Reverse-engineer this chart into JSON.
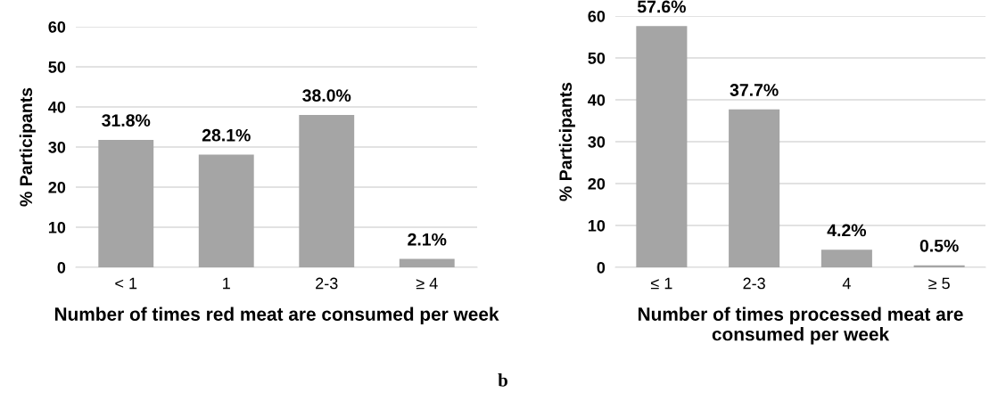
{
  "chart_data": [
    {
      "type": "bar",
      "xlabel": "Number of times red meat are consumed per week",
      "ylabel": "% Participants",
      "categories": [
        "< 1",
        "1",
        "2-3",
        "≥ 4"
      ],
      "values": [
        31.8,
        28.1,
        38.0,
        2.1
      ],
      "value_labels": [
        "31.8%",
        "28.1%",
        "38.0%",
        "2.1%"
      ],
      "color": "#a5a5a5",
      "ylim": [
        0,
        60
      ],
      "yticks": [
        0,
        10,
        20,
        30,
        40,
        50,
        60
      ],
      "grid": "y",
      "annotations": [
        "b"
      ]
    },
    {
      "type": "bar",
      "xlabel": "Number of times processed meat are consumed per week",
      "ylabel": "% Participants",
      "categories": [
        "≤ 1",
        "2-3",
        "4",
        "≥ 5"
      ],
      "values": [
        57.6,
        37.7,
        4.2,
        0.5
      ],
      "value_labels": [
        "57.6%",
        "37.7%",
        "4.2%",
        "0.5%"
      ],
      "color": "#a5a5a5",
      "ylim": [
        0,
        60
      ],
      "yticks": [
        0,
        10,
        20,
        30,
        40,
        50,
        60
      ],
      "grid": "y"
    }
  ]
}
